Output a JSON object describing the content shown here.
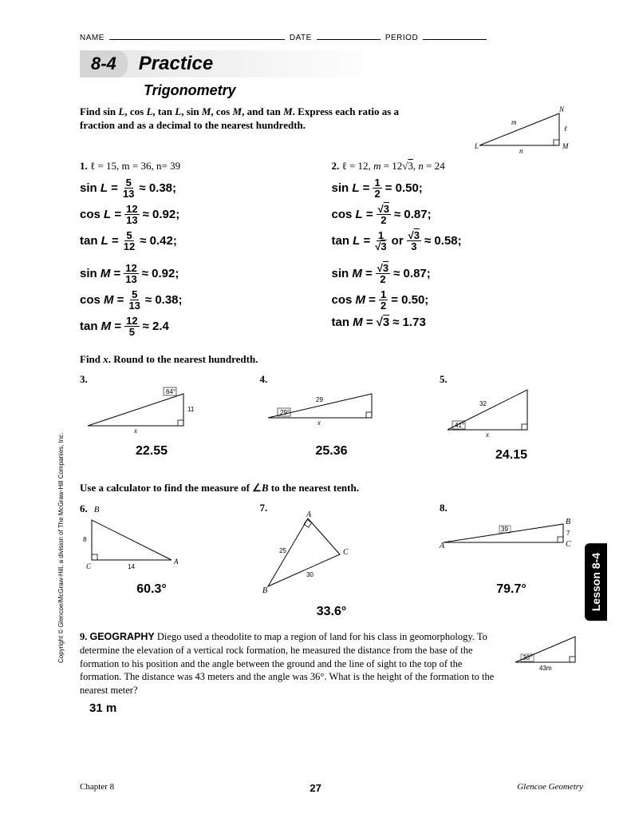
{
  "header": {
    "name": "NAME",
    "date": "DATE",
    "period": "PERIOD"
  },
  "section": {
    "number": "8-4",
    "title": "Practice",
    "subtitle": "Trigonometry"
  },
  "instr1": "Find sin L, cos L, tan L, sin M, cos M, and tan M. Express each ratio as a fraction and as a decimal to the nearest hundredth.",
  "headerTriangle": {
    "vertices": {
      "L": "L",
      "M": "M",
      "N": "N"
    },
    "sides": {
      "m": "m",
      "n": "n",
      "l": "ℓ"
    }
  },
  "p1": {
    "num": "1.",
    "given": "ℓ = 15, m = 36, n= 39",
    "lines": [
      {
        "lhs": "sin L =",
        "frac_n": "5",
        "frac_d": "13",
        "rhs": "≈ 0.38;"
      },
      {
        "lhs": "cos L =",
        "frac_n": "12",
        "frac_d": "13",
        "rhs": "≈ 0.92;"
      },
      {
        "lhs": "tan L =",
        "frac_n": "5",
        "frac_d": "12",
        "rhs": "≈ 0.42;"
      },
      {
        "lhs": "sin M =",
        "frac_n": "12",
        "frac_d": "13",
        "rhs": "≈ 0.92;"
      },
      {
        "lhs": "cos M =",
        "frac_n": "5",
        "frac_d": "13",
        "rhs": "≈ 0.38;"
      },
      {
        "lhs": "tan M =",
        "frac_n": "12",
        "frac_d": "5",
        "rhs": "≈ 2.4"
      }
    ]
  },
  "p2": {
    "num": "2.",
    "given": "ℓ = 12, m = 12√3, n = 24",
    "lines": [
      {
        "lhs": "sin L =",
        "frac_n": "1",
        "frac_d": "2",
        "rhs": "= 0.50;"
      },
      {
        "lhs": "cos L =",
        "frac_n": "√3",
        "frac_d": "2",
        "rhs": "≈ 0.87;"
      },
      {
        "lhs": "tan L =",
        "frac_n": "1",
        "frac_d": "√3",
        "mid": "or",
        "frac2_n": "√3",
        "frac2_d": "3",
        "rhs": "≈ 0.58;"
      },
      {
        "lhs": "sin M =",
        "frac_n": "√3",
        "frac_d": "2",
        "rhs": "≈ 0.87;"
      },
      {
        "lhs": "cos M =",
        "frac_n": "1",
        "frac_d": "2",
        "rhs": "= 0.50;"
      },
      {
        "lhs": "tan M =",
        "plain": "√3",
        "rhs": "≈ 1.73"
      }
    ]
  },
  "instr2": "Find x. Round to the nearest hundredth.",
  "p3": {
    "num": "3.",
    "answer": "22.55",
    "angle": "64°",
    "side": "11",
    "unknown": "x"
  },
  "p4": {
    "num": "4.",
    "answer": "25.36",
    "angle": "29°",
    "side": "29",
    "unknown": "x"
  },
  "p5": {
    "num": "5.",
    "answer": "24.15",
    "angle": "41°",
    "side": "32",
    "unknown": "x"
  },
  "instr3": "Use a calculator to find the measure of ∠B to the nearest tenth.",
  "p6": {
    "num": "6.",
    "answer": "60.3°",
    "A": "A",
    "B": "B",
    "C": "C",
    "s1": "8",
    "s2": "14"
  },
  "p7": {
    "num": "7.",
    "answer": "33.6°",
    "A": "A",
    "B": "B",
    "C": "C",
    "s1": "25",
    "s2": "30"
  },
  "p8": {
    "num": "8.",
    "answer": "79.7°",
    "A": "A",
    "B": "B",
    "C": "C",
    "s1": "39",
    "s2": "7"
  },
  "p9": {
    "num": "9.",
    "category": "GEOGRAPHY",
    "text": "Diego used a theodolite to map a region of land for his class in geomorphology. To determine the elevation of a vertical rock formation, he measured the distance from the base of the formation to his position and the angle between the ground and the line of sight to the top of the formation. The distance was 43 meters and the angle was 36°. What is the height of the formation to the nearest meter?",
    "answer": "31 m",
    "tri": {
      "angle": "36°",
      "base": "43m"
    }
  },
  "copyright": "Copyright © Glencoe/McGraw-Hill, a division of The McGraw-Hill Companies, Inc.",
  "lessonTab": "Lesson 8-4",
  "footer": {
    "chapter": "Chapter 8",
    "page": "27",
    "book": "Glencoe Geometry"
  },
  "colors": {
    "text": "#000000",
    "bg": "#ffffff",
    "bar_grad_start": "#e5e5e5",
    "tab_bg": "#000000"
  }
}
